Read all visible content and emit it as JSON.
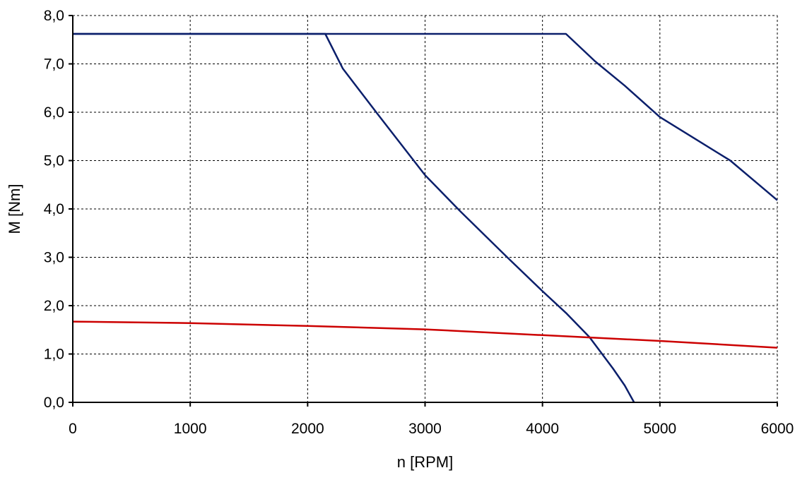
{
  "chart_data": {
    "type": "line",
    "title": "",
    "xlabel": "n [RPM]",
    "ylabel": "M [Nm]",
    "xlim": [
      0,
      6000
    ],
    "ylim": [
      0,
      8
    ],
    "xticks": [
      "0",
      "1000",
      "2000",
      "3000",
      "4000",
      "5000",
      "6000"
    ],
    "yticks": [
      "0,0",
      "1,0",
      "2,0",
      "3,0",
      "4,0",
      "5,0",
      "6,0",
      "7,0",
      "8,0"
    ],
    "grid": true,
    "legend": "none",
    "series": [
      {
        "color": "#0b1f6b",
        "points": [
          [
            0,
            7.62
          ],
          [
            4200,
            7.62
          ],
          [
            4450,
            7.05
          ],
          [
            4700,
            6.55
          ],
          [
            5000,
            5.9
          ],
          [
            5300,
            5.45
          ],
          [
            5600,
            5.0
          ],
          [
            6000,
            4.18
          ]
        ]
      },
      {
        "color": "#0b1f6b",
        "points": [
          [
            0,
            7.62
          ],
          [
            2150,
            7.62
          ],
          [
            2300,
            6.9
          ],
          [
            2600,
            5.95
          ],
          [
            3000,
            4.7
          ],
          [
            3300,
            3.95
          ],
          [
            3700,
            3.0
          ],
          [
            4000,
            2.3
          ],
          [
            4200,
            1.85
          ],
          [
            4400,
            1.35
          ],
          [
            4600,
            0.7
          ],
          [
            4700,
            0.35
          ],
          [
            4780,
            0.0
          ]
        ]
      },
      {
        "color": "#cc0000",
        "points": [
          [
            0,
            1.67
          ],
          [
            1000,
            1.64
          ],
          [
            2000,
            1.58
          ],
          [
            3000,
            1.51
          ],
          [
            4000,
            1.39
          ],
          [
            5000,
            1.27
          ],
          [
            6000,
            1.13
          ]
        ]
      }
    ]
  }
}
